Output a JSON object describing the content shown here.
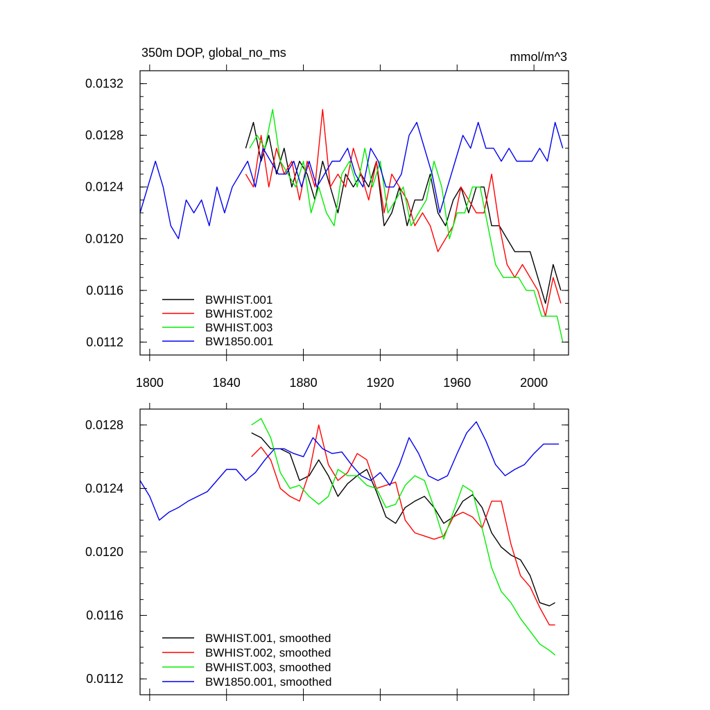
{
  "chart_data": [
    {
      "type": "line",
      "title": "350m DOP, global_no_ms",
      "units": "mmol/m^3",
      "xlim": [
        1795,
        2018
      ],
      "ylim": [
        0.0111,
        0.0133
      ],
      "xticks": [
        1800,
        1840,
        1880,
        1920,
        1960,
        2000
      ],
      "xtick_labels": [
        "1800",
        "1840",
        "1880",
        "1920",
        "1960",
        "2000"
      ],
      "yticks": [
        0.0112,
        0.0116,
        0.012,
        0.0124,
        0.0128,
        0.0132
      ],
      "ytick_labels": [
        "0.0112",
        "0.0116",
        "0.0120",
        "0.0124",
        "0.0128",
        "0.0132"
      ],
      "legend_position": "bottom-left",
      "series": [
        {
          "name": "BWHIST.001",
          "color": "#000000",
          "x": [
            1850,
            1854,
            1858,
            1862,
            1866,
            1870,
            1874,
            1878,
            1882,
            1886,
            1890,
            1894,
            1898,
            1902,
            1906,
            1910,
            1914,
            1918,
            1922,
            1926,
            1930,
            1934,
            1938,
            1942,
            1946,
            1950,
            1954,
            1958,
            1962,
            1966,
            1970,
            1974,
            1978,
            1982,
            1986,
            1990,
            1994,
            1998,
            2002,
            2006,
            2010,
            2014
          ],
          "y": [
            0.0127,
            0.0129,
            0.0126,
            0.0128,
            0.0125,
            0.0127,
            0.0124,
            0.0126,
            0.0125,
            0.0123,
            0.0126,
            0.0124,
            0.0122,
            0.0125,
            0.0124,
            0.0125,
            0.0124,
            0.0126,
            0.0121,
            0.0122,
            0.0124,
            0.0121,
            0.0123,
            0.0123,
            0.0125,
            0.0122,
            0.0121,
            0.0123,
            0.0124,
            0.0122,
            0.0124,
            0.0124,
            0.0121,
            0.0121,
            0.012,
            0.0119,
            0.0119,
            0.0119,
            0.0117,
            0.0115,
            0.0118,
            0.0116
          ]
        },
        {
          "name": "BWHIST.002",
          "color": "#ff0000",
          "x": [
            1850,
            1854,
            1858,
            1862,
            1866,
            1870,
            1874,
            1878,
            1882,
            1886,
            1890,
            1894,
            1898,
            1902,
            1906,
            1910,
            1914,
            1918,
            1922,
            1926,
            1930,
            1934,
            1938,
            1942,
            1946,
            1950,
            1954,
            1958,
            1962,
            1966,
            1970,
            1974,
            1978,
            1982,
            1986,
            1990,
            1994,
            1998,
            2002,
            2006,
            2010,
            2014
          ],
          "y": [
            0.0125,
            0.0124,
            0.0128,
            0.0124,
            0.0127,
            0.0125,
            0.0126,
            0.0123,
            0.0126,
            0.0124,
            0.013,
            0.0124,
            0.0125,
            0.0124,
            0.0127,
            0.0125,
            0.0123,
            0.0126,
            0.0122,
            0.0125,
            0.0124,
            0.0123,
            0.0121,
            0.0122,
            0.0121,
            0.0119,
            0.012,
            0.0121,
            0.0124,
            0.0123,
            0.0122,
            0.0122,
            0.0125,
            0.0121,
            0.0118,
            0.0117,
            0.0118,
            0.0117,
            0.0116,
            0.0114,
            0.0117,
            0.0115
          ]
        },
        {
          "name": "BWHIST.003",
          "color": "#00ee00",
          "x": [
            1852,
            1856,
            1860,
            1864,
            1868,
            1872,
            1876,
            1880,
            1884,
            1888,
            1892,
            1896,
            1900,
            1904,
            1908,
            1912,
            1916,
            1920,
            1924,
            1928,
            1932,
            1936,
            1940,
            1944,
            1948,
            1952,
            1956,
            1960,
            1964,
            1968,
            1972,
            1976,
            1980,
            1984,
            1988,
            1992,
            1996,
            2000,
            2004,
            2008,
            2012,
            2015
          ],
          "y": [
            0.0127,
            0.0128,
            0.0127,
            0.013,
            0.0126,
            0.0125,
            0.0124,
            0.0126,
            0.0122,
            0.0124,
            0.0122,
            0.0121,
            0.0125,
            0.0126,
            0.0124,
            0.0127,
            0.0124,
            0.0126,
            0.0122,
            0.0123,
            0.0124,
            0.0121,
            0.0122,
            0.0123,
            0.0126,
            0.0124,
            0.012,
            0.0122,
            0.0122,
            0.0124,
            0.0124,
            0.0121,
            0.0118,
            0.0117,
            0.0117,
            0.0117,
            0.0116,
            0.0116,
            0.0114,
            0.0114,
            0.0114,
            0.0112
          ]
        },
        {
          "name": "BW1850.001",
          "color": "#0000ee",
          "x": [
            1795,
            1799,
            1803,
            1807,
            1811,
            1815,
            1819,
            1823,
            1827,
            1831,
            1835,
            1839,
            1843,
            1847,
            1851,
            1855,
            1859,
            1863,
            1867,
            1871,
            1875,
            1879,
            1883,
            1887,
            1891,
            1895,
            1899,
            1903,
            1907,
            1911,
            1915,
            1919,
            1923,
            1927,
            1931,
            1935,
            1939,
            1943,
            1947,
            1951,
            1955,
            1959,
            1963,
            1967,
            1971,
            1975,
            1979,
            1983,
            1987,
            1991,
            1995,
            1999,
            2003,
            2007,
            2011,
            2015
          ],
          "y": [
            0.0122,
            0.0124,
            0.0126,
            0.0124,
            0.0121,
            0.012,
            0.0123,
            0.0122,
            0.0123,
            0.0121,
            0.0124,
            0.0122,
            0.0124,
            0.0125,
            0.0126,
            0.0124,
            0.0127,
            0.0126,
            0.0125,
            0.0125,
            0.0126,
            0.0124,
            0.0126,
            0.0124,
            0.0125,
            0.0126,
            0.0126,
            0.0127,
            0.0125,
            0.0124,
            0.0127,
            0.0126,
            0.0124,
            0.0124,
            0.0125,
            0.0128,
            0.0129,
            0.0127,
            0.0125,
            0.0122,
            0.0124,
            0.0126,
            0.0128,
            0.0127,
            0.0129,
            0.0127,
            0.0127,
            0.0126,
            0.0127,
            0.0126,
            0.0126,
            0.0126,
            0.0127,
            0.0126,
            0.0129,
            0.0127
          ]
        }
      ]
    },
    {
      "type": "line",
      "xlim": [
        1795,
        2018
      ],
      "ylim": [
        0.0111,
        0.0129
      ],
      "xticks": [
        1800,
        1840,
        1880,
        1920,
        1960,
        2000
      ],
      "yticks": [
        0.0112,
        0.0116,
        0.012,
        0.0124,
        0.0128
      ],
      "ytick_labels": [
        "0.0112",
        "0.0116",
        "0.0120",
        "0.0124",
        "0.0128"
      ],
      "legend_position": "bottom-left",
      "series": [
        {
          "name": "BWHIST.001, smoothed",
          "color": "#000000",
          "x": [
            1853,
            1858,
            1863,
            1868,
            1873,
            1878,
            1883,
            1888,
            1893,
            1898,
            1903,
            1908,
            1913,
            1918,
            1923,
            1928,
            1933,
            1938,
            1943,
            1948,
            1953,
            1958,
            1963,
            1968,
            1973,
            1978,
            1983,
            1988,
            1993,
            1998,
            2003,
            2008,
            2011
          ],
          "y": [
            0.01275,
            0.01272,
            0.01265,
            0.01265,
            0.01262,
            0.01245,
            0.01248,
            0.01258,
            0.01248,
            0.01235,
            0.01243,
            0.01248,
            0.01252,
            0.01238,
            0.01222,
            0.01218,
            0.01228,
            0.01232,
            0.01235,
            0.01228,
            0.01218,
            0.01222,
            0.01232,
            0.01236,
            0.01228,
            0.01212,
            0.01203,
            0.01198,
            0.01195,
            0.01185,
            0.01168,
            0.01166,
            0.01168
          ]
        },
        {
          "name": "BWHIST.002, smoothed",
          "color": "#ff0000",
          "x": [
            1853,
            1858,
            1863,
            1868,
            1873,
            1878,
            1883,
            1888,
            1893,
            1898,
            1903,
            1908,
            1913,
            1918,
            1923,
            1928,
            1933,
            1938,
            1943,
            1948,
            1953,
            1958,
            1963,
            1968,
            1973,
            1978,
            1983,
            1988,
            1993,
            1998,
            2003,
            2008,
            2011
          ],
          "y": [
            0.0126,
            0.01266,
            0.01258,
            0.0124,
            0.01235,
            0.01232,
            0.0125,
            0.0128,
            0.01255,
            0.01245,
            0.0125,
            0.01262,
            0.01258,
            0.0124,
            0.01242,
            0.01244,
            0.0122,
            0.01212,
            0.0121,
            0.01208,
            0.0121,
            0.01222,
            0.01225,
            0.01222,
            0.01215,
            0.01232,
            0.01232,
            0.01205,
            0.01185,
            0.01178,
            0.01165,
            0.01154,
            0.01154
          ]
        },
        {
          "name": "BWHIST.003, smoothed",
          "color": "#00ee00",
          "x": [
            1853,
            1858,
            1863,
            1868,
            1873,
            1878,
            1883,
            1888,
            1893,
            1898,
            1903,
            1908,
            1913,
            1918,
            1923,
            1928,
            1933,
            1938,
            1943,
            1948,
            1953,
            1958,
            1963,
            1968,
            1973,
            1978,
            1983,
            1988,
            1993,
            1998,
            2003,
            2008,
            2011
          ],
          "y": [
            0.0128,
            0.01284,
            0.01272,
            0.0125,
            0.0124,
            0.01242,
            0.01235,
            0.0123,
            0.01235,
            0.01252,
            0.01248,
            0.01248,
            0.01242,
            0.0124,
            0.01228,
            0.0123,
            0.01242,
            0.01248,
            0.01245,
            0.01228,
            0.01208,
            0.01225,
            0.01242,
            0.01238,
            0.01215,
            0.0119,
            0.01175,
            0.01168,
            0.01158,
            0.0115,
            0.01142,
            0.01138,
            0.01135
          ]
        },
        {
          "name": "BW1850.001, smoothed",
          "color": "#0000ee",
          "x": [
            1795,
            1800,
            1805,
            1810,
            1815,
            1820,
            1825,
            1830,
            1835,
            1840,
            1845,
            1850,
            1855,
            1860,
            1865,
            1870,
            1875,
            1880,
            1885,
            1890,
            1895,
            1900,
            1905,
            1910,
            1915,
            1920,
            1925,
            1930,
            1935,
            1940,
            1945,
            1950,
            1955,
            1960,
            1965,
            1970,
            1975,
            1980,
            1985,
            1990,
            1995,
            2000,
            2005,
            2010,
            2013
          ],
          "y": [
            0.01245,
            0.01235,
            0.0122,
            0.01225,
            0.01228,
            0.01232,
            0.01235,
            0.01238,
            0.01245,
            0.01252,
            0.01252,
            0.01245,
            0.0125,
            0.01258,
            0.01265,
            0.01265,
            0.01262,
            0.0126,
            0.01272,
            0.01265,
            0.01262,
            0.01263,
            0.01255,
            0.01248,
            0.01245,
            0.0125,
            0.01242,
            0.01255,
            0.01272,
            0.01262,
            0.01248,
            0.01245,
            0.01248,
            0.01262,
            0.01275,
            0.01282,
            0.0127,
            0.01255,
            0.01248,
            0.01252,
            0.01255,
            0.01262,
            0.01268,
            0.01268,
            0.01268
          ]
        }
      ]
    }
  ]
}
